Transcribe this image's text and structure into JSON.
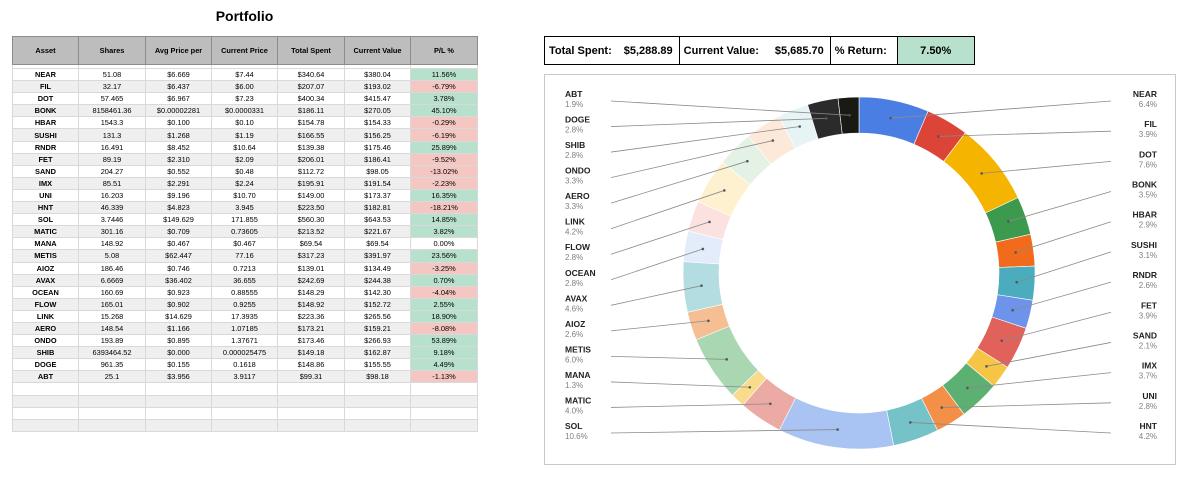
{
  "portfolio": {
    "title": "Portfolio",
    "headers": [
      "Asset",
      "Shares",
      "Avg Price per",
      "Current Price",
      "Total Spent",
      "Current Value",
      "P/L %"
    ],
    "rows": [
      {
        "asset": "NEAR",
        "shares": "51.08",
        "avg": "$6.669",
        "cur": "$7.44",
        "spent": "$340.64",
        "value": "$380.04",
        "pl": "11.56%"
      },
      {
        "asset": "FIL",
        "shares": "32.17",
        "avg": "$6.437",
        "cur": "$6.00",
        "spent": "$207.07",
        "value": "$193.02",
        "pl": "-6.79%"
      },
      {
        "asset": "DOT",
        "shares": "57.465",
        "avg": "$6.967",
        "cur": "$7.23",
        "spent": "$400.34",
        "value": "$415.47",
        "pl": "3.78%"
      },
      {
        "asset": "BONK",
        "shares": "8158461.36",
        "avg": "$0.00002281",
        "cur": "$0.0000331",
        "spent": "$186.11",
        "value": "$270.05",
        "pl": "45.10%"
      },
      {
        "asset": "HBAR",
        "shares": "1543.3",
        "avg": "$0.100",
        "cur": "$0.10",
        "spent": "$154.78",
        "value": "$154.33",
        "pl": "-0.29%"
      },
      {
        "asset": "SUSHI",
        "shares": "131.3",
        "avg": "$1.268",
        "cur": "$1.19",
        "spent": "$166.55",
        "value": "$156.25",
        "pl": "-6.19%"
      },
      {
        "asset": "RNDR",
        "shares": "16.491",
        "avg": "$8.452",
        "cur": "$10.64",
        "spent": "$139.38",
        "value": "$175.46",
        "pl": "25.89%"
      },
      {
        "asset": "FET",
        "shares": "89.19",
        "avg": "$2.310",
        "cur": "$2.09",
        "spent": "$206.01",
        "value": "$186.41",
        "pl": "-9.52%"
      },
      {
        "asset": "SAND",
        "shares": "204.27",
        "avg": "$0.552",
        "cur": "$0.48",
        "spent": "$112.72",
        "value": "$98.05",
        "pl": "-13.02%"
      },
      {
        "asset": "IMX",
        "shares": "85.51",
        "avg": "$2.291",
        "cur": "$2.24",
        "spent": "$195.91",
        "value": "$191.54",
        "pl": "-2.23%"
      },
      {
        "asset": "UNI",
        "shares": "16.203",
        "avg": "$9.196",
        "cur": "$10.70",
        "spent": "$149.00",
        "value": "$173.37",
        "pl": "16.35%"
      },
      {
        "asset": "HNT",
        "shares": "46.339",
        "avg": "$4.823",
        "cur": "3.945",
        "spent": "$223.50",
        "value": "$182.81",
        "pl": "-18.21%"
      },
      {
        "asset": "SOL",
        "shares": "3.7446",
        "avg": "$149.629",
        "cur": "171.855",
        "spent": "$560.30",
        "value": "$643.53",
        "pl": "14.85%"
      },
      {
        "asset": "MATIC",
        "shares": "301.16",
        "avg": "$0.709",
        "cur": "0.73605",
        "spent": "$213.52",
        "value": "$221.67",
        "pl": "3.82%"
      },
      {
        "asset": "MANA",
        "shares": "148.92",
        "avg": "$0.467",
        "cur": "$0.467",
        "spent": "$69.54",
        "value": "$69.54",
        "pl": "0.00%"
      },
      {
        "asset": "METIS",
        "shares": "5.08",
        "avg": "$62.447",
        "cur": "77.16",
        "spent": "$317.23",
        "value": "$391.97",
        "pl": "23.56%"
      },
      {
        "asset": "AIOZ",
        "shares": "186.46",
        "avg": "$0.746",
        "cur": "0.7213",
        "spent": "$139.01",
        "value": "$134.49",
        "pl": "-3.25%"
      },
      {
        "asset": "AVAX",
        "shares": "6.6669",
        "avg": "$36.402",
        "cur": "36.655",
        "spent": "$242.69",
        "value": "$244.38",
        "pl": "0.70%"
      },
      {
        "asset": "OCEAN",
        "shares": "160.69",
        "avg": "$0.923",
        "cur": "0.88555",
        "spent": "$148.29",
        "value": "$142.30",
        "pl": "-4.04%"
      },
      {
        "asset": "FLOW",
        "shares": "165.01",
        "avg": "$0.902",
        "cur": "0.9255",
        "spent": "$148.92",
        "value": "$152.72",
        "pl": "2.55%"
      },
      {
        "asset": "LINK",
        "shares": "15.268",
        "avg": "$14.629",
        "cur": "17.3935",
        "spent": "$223.36",
        "value": "$265.56",
        "pl": "18.90%"
      },
      {
        "asset": "AERO",
        "shares": "148.54",
        "avg": "$1.166",
        "cur": "1.07185",
        "spent": "$173.21",
        "value": "$159.21",
        "pl": "-8.08%"
      },
      {
        "asset": "ONDO",
        "shares": "193.89",
        "avg": "$0.895",
        "cur": "1.37671",
        "spent": "$173.46",
        "value": "$266.93",
        "pl": "53.89%"
      },
      {
        "asset": "SHIB",
        "shares": "6393464.52",
        "avg": "$0.000",
        "cur": "0.000025475",
        "spent": "$149.18",
        "value": "$162.87",
        "pl": "9.18%"
      },
      {
        "asset": "DOGE",
        "shares": "961.35",
        "avg": "$0.155",
        "cur": "0.1618",
        "spent": "$148.86",
        "value": "$155.55",
        "pl": "4.49%"
      },
      {
        "asset": "ABT",
        "shares": "25.1",
        "avg": "$3.956",
        "cur": "3.9117",
        "spent": "$99.31",
        "value": "$98.18",
        "pl": "-1.13%"
      }
    ]
  },
  "summary": {
    "total_spent_label": "Total Spent:",
    "total_spent_value": "$5,288.89",
    "current_value_label": "Current Value:",
    "current_value_value": "$5,685.70",
    "return_label": "% Return:",
    "return_value": "7.50%"
  },
  "colors": {
    "positive": "#b7e1cd",
    "negative": "#f4c7c3",
    "header": "#bdbdbd"
  },
  "chart_data": {
    "type": "pie",
    "style": "donut",
    "title": "",
    "series": [
      {
        "label": "NEAR",
        "percent": "6.4%",
        "value": 6.4,
        "color": "#4a7ee3"
      },
      {
        "label": "FIL",
        "percent": "3.9%",
        "value": 3.9,
        "color": "#db4437"
      },
      {
        "label": "DOT",
        "percent": "7.6%",
        "value": 7.6,
        "color": "#f4b400"
      },
      {
        "label": "BONK",
        "percent": "3.5%",
        "value": 3.5,
        "color": "#3c9a4e"
      },
      {
        "label": "HBAR",
        "percent": "2.9%",
        "value": 2.9,
        "color": "#f26b1d"
      },
      {
        "label": "SUSHI",
        "percent": "3.1%",
        "value": 3.1,
        "color": "#4aacbd"
      },
      {
        "label": "RNDR",
        "percent": "2.6%",
        "value": 2.6,
        "color": "#6d93ea"
      },
      {
        "label": "FET",
        "percent": "3.9%",
        "value": 3.9,
        "color": "#e0625a"
      },
      {
        "label": "SAND",
        "percent": "2.1%",
        "value": 2.1,
        "color": "#f6c545"
      },
      {
        "label": "IMX",
        "percent": "3.7%",
        "value": 3.7,
        "color": "#5bb072"
      },
      {
        "label": "UNI",
        "percent": "2.8%",
        "value": 2.8,
        "color": "#f48f48"
      },
      {
        "label": "HNT",
        "percent": "4.2%",
        "value": 4.2,
        "color": "#75c2c9"
      },
      {
        "label": "SOL",
        "percent": "10.6%",
        "value": 10.6,
        "color": "#a9c3f2"
      },
      {
        "label": "MATIC",
        "percent": "4.0%",
        "value": 4.0,
        "color": "#ecaaa4"
      },
      {
        "label": "MANA",
        "percent": "1.3%",
        "value": 1.3,
        "color": "#f8dc8c"
      },
      {
        "label": "METIS",
        "percent": "6.0%",
        "value": 6.0,
        "color": "#a9d7b2"
      },
      {
        "label": "AIOZ",
        "percent": "2.6%",
        "value": 2.6,
        "color": "#f6bf93"
      },
      {
        "label": "AVAX",
        "percent": "4.6%",
        "value": 4.6,
        "color": "#b4dde2"
      },
      {
        "label": "OCEAN",
        "percent": "2.8%",
        "value": 2.8,
        "color": "#e3ecfb"
      },
      {
        "label": "FLOW",
        "percent": "2.8%",
        "value": 2.8,
        "color": "#fbe2e0"
      },
      {
        "label": "LINK",
        "percent": "4.2%",
        "value": 4.2,
        "color": "#fdf1d0"
      },
      {
        "label": "AERO",
        "percent": "3.3%",
        "value": 3.3,
        "color": "#e4f2e6"
      },
      {
        "label": "ONDO",
        "percent": "3.3%",
        "value": 3.3,
        "color": "#fde9da"
      },
      {
        "label": "SHIB",
        "percent": "2.8%",
        "value": 2.8,
        "color": "#e6f4f6"
      },
      {
        "label": "DOGE",
        "percent": "2.8%",
        "value": 2.8,
        "color": "#2b2b2b"
      },
      {
        "label": "ABT",
        "percent": "1.9%",
        "value": 1.9,
        "color": "#1a1a14"
      }
    ],
    "legend": "labels-on-sides"
  }
}
